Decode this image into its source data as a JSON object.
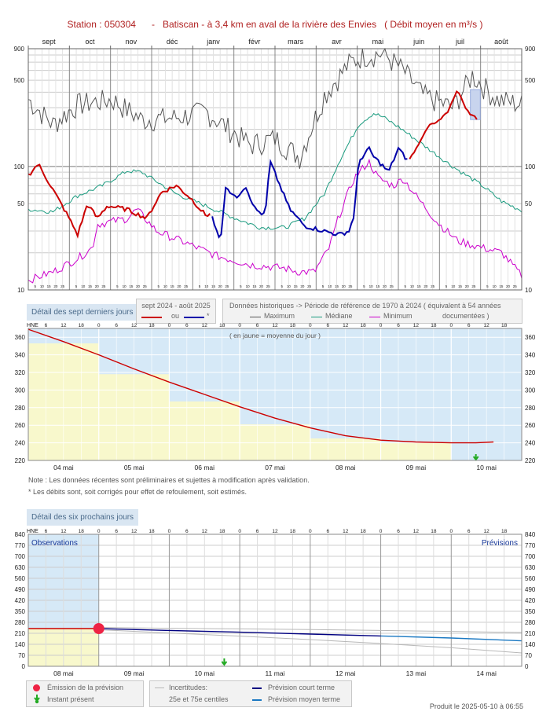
{
  "title": "Station : 050304      -   Batiscan - à 3,4 km en aval de la rivière des Envies   ( Débit moyen en m³/s )",
  "colors": {
    "current": "#cc0000",
    "corrected": "#0000aa",
    "maximum": "#555555",
    "median": "#199a7e",
    "minimum": "#cc00cc",
    "observation_bg": "#d6e9f7",
    "daily_mean_bg": "#f8f8cc",
    "short_term": "#000080",
    "medium_term": "#1a78c2",
    "uncertainty": "#b8b8b8",
    "emission": "#ee2244",
    "instant": "#22aa22"
  },
  "annual_chart": {
    "months": [
      "sept",
      "oct",
      "nov",
      "déc",
      "janv",
      "févr",
      "mars",
      "avr",
      "mai",
      "juin",
      "juil",
      "août"
    ],
    "day_ticks": [
      "5",
      "10",
      "15",
      "20",
      "25"
    ],
    "y_ticks": [
      "900",
      "500",
      "100",
      "50",
      "10"
    ]
  },
  "legend": {
    "tab_recent": "Détail des sept derniers jours",
    "period_title": "sept 2024 - août 2025",
    "or_word": "ou",
    "star": "*",
    "historic_title": "Données historiques -> Période de référence  de 1970 à 2024   ( équivalent à 54 années",
    "documented": "documentées )",
    "maximum": "Maximum",
    "median": "Médiane",
    "minimum": "Minimum"
  },
  "week_chart": {
    "hne": "HNE",
    "hour_ticks": [
      "6",
      "12",
      "18",
      "0"
    ],
    "days": [
      "04 mai",
      "05 mai",
      "06 mai",
      "07 mai",
      "08 mai",
      "09 mai",
      "10 mai"
    ],
    "y_ticks": [
      "360",
      "340",
      "320",
      "300",
      "280",
      "260",
      "240",
      "220"
    ],
    "annotation": "( en jaune = moyenne du jour )",
    "daily_means": [
      353,
      318,
      287,
      261,
      245,
      240
    ],
    "flow_points": [
      [
        0,
        369
      ],
      [
        0.5,
        355
      ],
      [
        1,
        340
      ],
      [
        1.5,
        324
      ],
      [
        2,
        309
      ],
      [
        2.5,
        295
      ],
      [
        3,
        281
      ],
      [
        3.5,
        268
      ],
      [
        4,
        257
      ],
      [
        4.5,
        248
      ],
      [
        5,
        243
      ],
      [
        5.5,
        241
      ],
      [
        6,
        240
      ],
      [
        6.35,
        240
      ],
      [
        6.6,
        241
      ]
    ],
    "ylim": [
      220,
      370
    ]
  },
  "notes": {
    "line1": "Note : Les données récentes sont préliminaires et sujettes à modification après validation.",
    "line2": "* Les débits sont, soit corrigés pour effet de refoulement, soit estimés."
  },
  "forecast_chart": {
    "tab": "Détail des six prochains jours",
    "hne": "HNE",
    "hour_ticks": [
      "6",
      "12",
      "18",
      "0"
    ],
    "days": [
      "08 mai",
      "09 mai",
      "10 mai",
      "11 mai",
      "12 mai",
      "13 mai",
      "14 mai"
    ],
    "y_ticks": [
      "840",
      "770",
      "700",
      "630",
      "560",
      "490",
      "420",
      "350",
      "280",
      "210",
      "140",
      "70",
      "0"
    ],
    "observations_label": "Observations",
    "forecasts_label": "Prévisions",
    "observed_value": 240,
    "short_term": [
      [
        1,
        240
      ],
      [
        2,
        228
      ],
      [
        3,
        217
      ],
      [
        4,
        205
      ],
      [
        5,
        193
      ],
      [
        6,
        180
      ],
      [
        7,
        162
      ]
    ],
    "upper_band": [
      [
        1,
        247
      ],
      [
        2,
        242
      ],
      [
        3,
        238
      ],
      [
        4,
        234
      ],
      [
        5,
        228
      ],
      [
        6,
        222
      ],
      [
        7,
        215
      ]
    ],
    "lower_band": [
      [
        1,
        233
      ],
      [
        2,
        212
      ],
      [
        3,
        192
      ],
      [
        4,
        170
      ],
      [
        5,
        145
      ],
      [
        6,
        118
      ],
      [
        7,
        85
      ]
    ],
    "ylim": [
      0,
      840
    ]
  },
  "forecast_legend": {
    "emission": "Émission de la prévision",
    "instant": "Instant présent",
    "uncertainties": "Incertitudes:",
    "percentiles": "25e et 75e centiles",
    "short_term": "Prévision court terme",
    "medium_term": "Prévision moyen terme"
  },
  "produced": "Produit le 2025-05-10 à 06:55"
}
